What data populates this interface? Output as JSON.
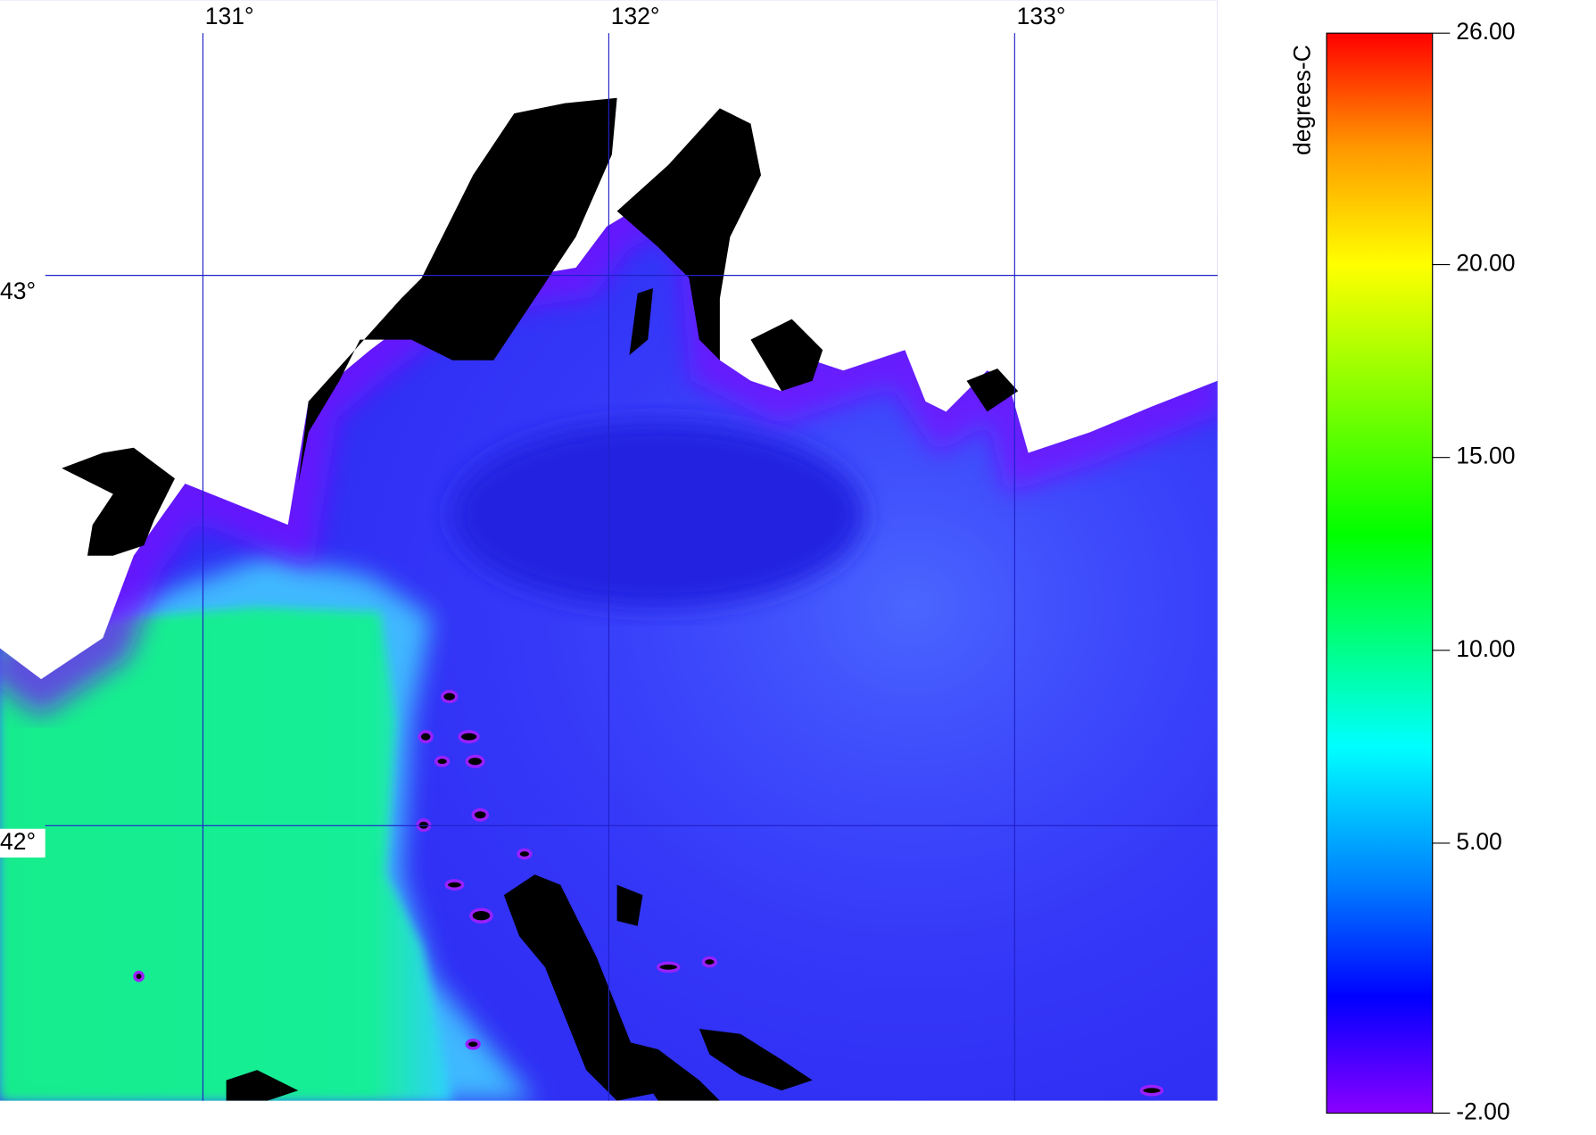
{
  "map": {
    "xlim": [
      130.5,
      133.5
    ],
    "ylim": [
      41.5,
      43.5
    ],
    "xticks": [
      {
        "value": 131,
        "label": "131°"
      },
      {
        "value": 132,
        "label": "132°"
      },
      {
        "value": 133,
        "label": "133°"
      }
    ],
    "yticks": [
      {
        "value": 43,
        "label": "43°"
      },
      {
        "value": 42,
        "label": "42°"
      }
    ],
    "grid_color": "#2020c8"
  },
  "colorbar": {
    "label": "degrees-C",
    "lim": [
      -2,
      26
    ],
    "ticks": [
      {
        "value": 26,
        "label": "26.00"
      },
      {
        "value": 20,
        "label": "20.00"
      },
      {
        "value": 15,
        "label": "15.00"
      },
      {
        "value": 10,
        "label": "10.00"
      },
      {
        "value": 5,
        "label": "5.00"
      },
      {
        "value": -2,
        "label": "-2.00"
      }
    ],
    "colormap": [
      {
        "value": -2,
        "color": "#8a00ff"
      },
      {
        "value": 1,
        "color": "#0000ff"
      },
      {
        "value": 4,
        "color": "#0080ff"
      },
      {
        "value": 7.5,
        "color": "#00ffff"
      },
      {
        "value": 13,
        "color": "#00ff00"
      },
      {
        "value": 20,
        "color": "#ffff00"
      },
      {
        "value": 23,
        "color": "#ff9900"
      },
      {
        "value": 26,
        "color": "#ff0000"
      }
    ]
  }
}
